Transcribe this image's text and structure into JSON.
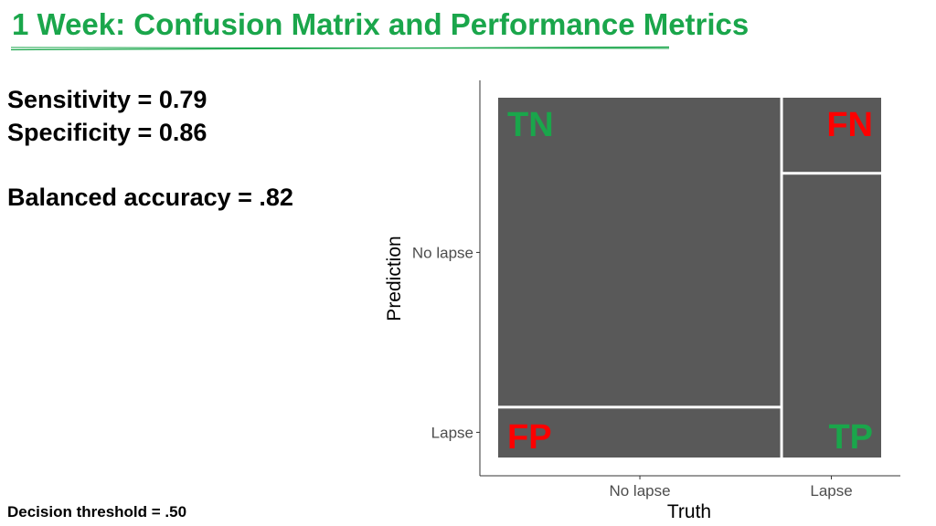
{
  "slide": {
    "title": "1 Week: Confusion Matrix and Performance Metrics",
    "title_color": "#1aa64b"
  },
  "metrics": {
    "sensitivity": "Sensitivity = 0.79",
    "specificity": "Specificity = 0.86",
    "balanced_accuracy": "Balanced accuracy = .82"
  },
  "footer": {
    "threshold": "Decision threshold = .50"
  },
  "chart_data": {
    "type": "mosaic",
    "xlabel": "Truth",
    "ylabel": "Prediction",
    "x_categories": [
      "No lapse",
      "Lapse"
    ],
    "y_categories": [
      "No lapse",
      "Lapse"
    ],
    "x_column_share": [
      0.74,
      0.26
    ],
    "sensitivity": 0.79,
    "specificity": 0.86,
    "cells": [
      {
        "label": "TN",
        "truth": "No lapse",
        "prediction": "No lapse",
        "share_of_column": 0.86,
        "label_color": "#1aa64b"
      },
      {
        "label": "FP",
        "truth": "No lapse",
        "prediction": "Lapse",
        "share_of_column": 0.14,
        "label_color": "#ff0000"
      },
      {
        "label": "FN",
        "truth": "Lapse",
        "prediction": "No lapse",
        "share_of_column": 0.21,
        "label_color": "#ff0000"
      },
      {
        "label": "TP",
        "truth": "Lapse",
        "prediction": "Lapse",
        "share_of_column": 0.79,
        "label_color": "#1aa64b"
      }
    ],
    "tile_color": "#595959",
    "grid": false,
    "legend": "none"
  }
}
